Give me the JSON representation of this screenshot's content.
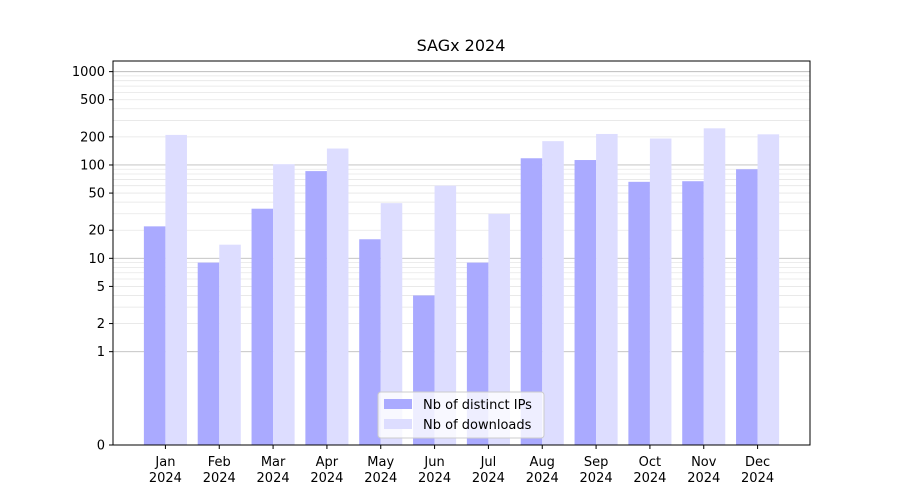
{
  "chart_data": {
    "type": "bar",
    "title": "SAGx 2024",
    "xlabel": "",
    "ylabel": "",
    "yscale": "symlog",
    "ylim": [
      0,
      1300
    ],
    "yticks": [
      0,
      1,
      2,
      5,
      10,
      20,
      50,
      100,
      200,
      500,
      1000
    ],
    "ytick_labels": [
      "0",
      "1",
      "2",
      "5",
      "10",
      "20",
      "50",
      "100",
      "200",
      "500",
      "1000"
    ],
    "grid": true,
    "legend_position": "bottom-center",
    "categories": [
      [
        "Jan",
        "2024"
      ],
      [
        "Feb",
        "2024"
      ],
      [
        "Mar",
        "2024"
      ],
      [
        "Apr",
        "2024"
      ],
      [
        "May",
        "2024"
      ],
      [
        "Jun",
        "2024"
      ],
      [
        "Jul",
        "2024"
      ],
      [
        "Aug",
        "2024"
      ],
      [
        "Sep",
        "2024"
      ],
      [
        "Oct",
        "2024"
      ],
      [
        "Nov",
        "2024"
      ],
      [
        "Dec",
        "2024"
      ]
    ],
    "series": [
      {
        "name": "Nb of distinct IPs",
        "color": "#aaaaff",
        "values": [
          22,
          9,
          34,
          86,
          16,
          4,
          9,
          118,
          113,
          66,
          67,
          90
        ]
      },
      {
        "name": "Nb of downloads",
        "color": "#ddddff",
        "values": [
          210,
          14,
          102,
          150,
          39,
          60,
          30,
          180,
          215,
          192,
          247,
          213
        ]
      }
    ]
  }
}
